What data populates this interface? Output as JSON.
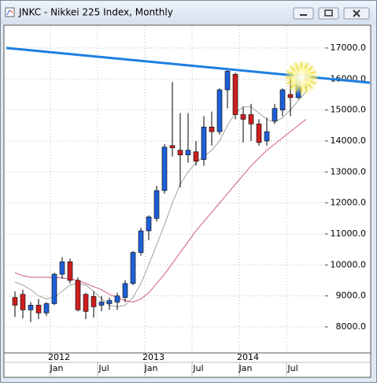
{
  "chart_data": {
    "type": "candlestick",
    "title": "JNKC - Nikkei 225 Index, Monthly",
    "categories": [
      null,
      null,
      null,
      null,
      null,
      "Jan",
      null,
      null,
      null,
      null,
      null,
      "Jul",
      null,
      null,
      null,
      null,
      null,
      "Jan",
      null,
      null,
      null,
      null,
      null,
      "Jul",
      null,
      null,
      null,
      null,
      null,
      "Jan",
      null,
      null,
      null,
      null,
      null,
      "Jul",
      null,
      null
    ],
    "years": [
      "2012",
      "2013",
      "2014"
    ],
    "open": [
      8950,
      9050,
      8550,
      8700,
      8450,
      8750,
      9700,
      10100,
      9500,
      9050,
      8980,
      8700,
      8750,
      8800,
      8950,
      9400,
      10400,
      11100,
      11500,
      12400,
      13850,
      13700,
      13550,
      13650,
      13400,
      14450,
      14300,
      15650,
      16150,
      14850,
      14850,
      14550,
      14000,
      14650,
      15000,
      15500,
      15400,
      16150
    ],
    "high": [
      9150,
      9200,
      8800,
      8900,
      8800,
      9750,
      10250,
      10200,
      9600,
      9100,
      9150,
      9000,
      8950,
      9100,
      9500,
      10450,
      11200,
      11600,
      12550,
      13900,
      15900,
      14900,
      14900,
      14000,
      14800,
      14950,
      15700,
      16300,
      16200,
      15100,
      15200,
      14700,
      14750,
      15200,
      15700,
      16000,
      16350,
      16250
    ],
    "low": [
      8320,
      8280,
      8150,
      8250,
      8350,
      8700,
      9550,
      9400,
      8500,
      8250,
      8300,
      8500,
      8550,
      8550,
      8800,
      9350,
      10300,
      10800,
      11400,
      12300,
      13500,
      12500,
      13300,
      13200,
      13200,
      13850,
      14200,
      15050,
      14700,
      13950,
      14000,
      13850,
      13850,
      14550,
      14800,
      14800,
      15350,
      15650
    ],
    "close": [
      8700,
      8550,
      8700,
      8450,
      8750,
      9700,
      10100,
      9500,
      8550,
      8500,
      8650,
      8800,
      8850,
      9000,
      9400,
      10400,
      11100,
      11550,
      12400,
      13800,
      13780,
      13550,
      13700,
      13350,
      14450,
      14300,
      15650,
      16250,
      14850,
      14700,
      14550,
      13950,
      14300,
      15050,
      15650,
      15400,
      16150,
      15950
    ],
    "up_color": "#1f5fd8",
    "down_color": "#cc1f1f",
    "lines": [
      {
        "color": "#9aa89a",
        "values": [
          9450,
          9350,
          9200,
          9000,
          8900,
          8950,
          9150,
          9350,
          9400,
          9350,
          9150,
          8900,
          8700,
          8650,
          8700,
          8950,
          9400,
          10000,
          10650,
          11300,
          12000,
          12600,
          13000,
          13300,
          13500,
          13700,
          14000,
          14500,
          14900,
          15100,
          15100,
          14900,
          14700,
          14600,
          14750,
          15000,
          15300,
          15600
        ]
      },
      {
        "color": "#d0588a",
        "values": [
          9750,
          9650,
          9600,
          9600,
          9600,
          9600,
          9580,
          9550,
          9500,
          9400,
          9300,
          9200,
          9050,
          8950,
          8850,
          8800,
          8900,
          9100,
          9400,
          9700,
          10050,
          10400,
          10750,
          11100,
          11400,
          11700,
          12000,
          12300,
          12600,
          12900,
          13200,
          13450,
          13700,
          13900,
          14100,
          14300,
          14500,
          14700
        ]
      }
    ],
    "trendline": {
      "start": 17000,
      "end": 15880,
      "color": "#1e7fe0"
    },
    "ylim": [
      7160,
      17710
    ],
    "yticks": [
      {
        "value": 8000,
        "label": "8000.0"
      },
      {
        "value": 9000,
        "label": "9000.0"
      },
      {
        "value": 10000,
        "label": "10000.0"
      },
      {
        "value": 11000,
        "label": "11000.0"
      },
      {
        "value": 12000,
        "label": "12000.0"
      },
      {
        "value": 13000,
        "label": "13000.0"
      },
      {
        "value": 14000,
        "label": "14000.0"
      },
      {
        "value": 15000,
        "label": "15000.0"
      },
      {
        "value": 16000,
        "label": "16000.0"
      },
      {
        "value": 17000,
        "label": "17000.0"
      }
    ],
    "grid": true
  }
}
